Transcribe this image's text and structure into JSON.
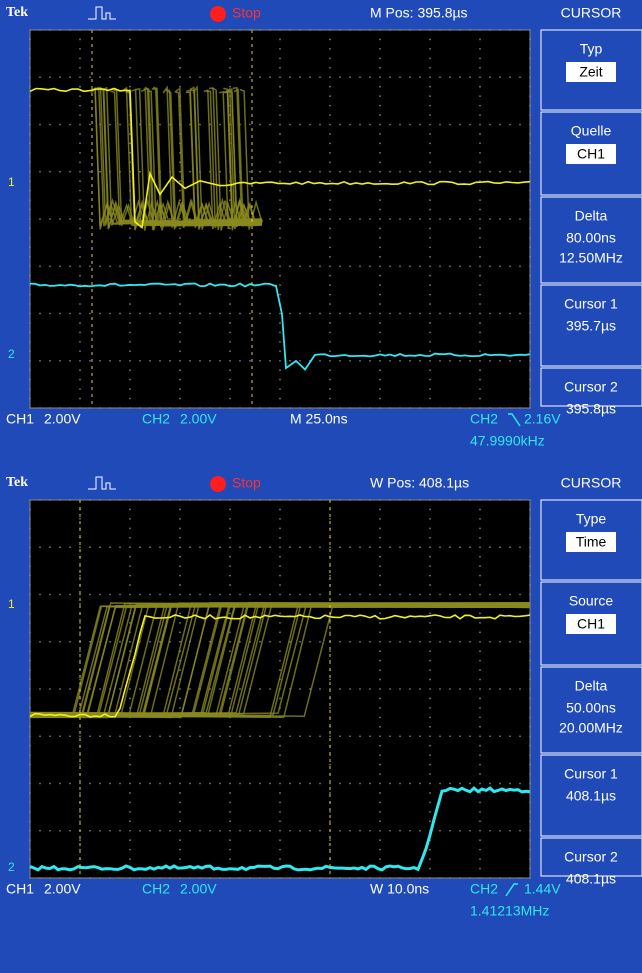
{
  "screens": [
    {
      "header": {
        "brand": "Tek",
        "state": "Stop",
        "position": "M Pos: 395.8µs"
      },
      "menu": {
        "title": "CURSOR",
        "items": [
          {
            "label": "Typ",
            "value": "Zeit"
          },
          {
            "label": "Quelle",
            "value": "CH1"
          },
          {
            "label": "Delta",
            "lines": [
              "80.00ns",
              "12.50MHz"
            ]
          },
          {
            "label": "Cursor 1",
            "lines": [
              "395.7µs"
            ]
          },
          {
            "label": "Cursor 2",
            "lines": [
              "395.8µs"
            ]
          }
        ]
      },
      "markers": [
        "1",
        "2"
      ],
      "footer": {
        "ch1": "CH1",
        "ch1_scale": "2.00V",
        "ch2": "CH2",
        "ch2_scale": "2.00V",
        "timebase": "M 25.0ns",
        "trigger_source": "CH2",
        "trigger_level": "2.16V",
        "frequency": "47.9990kHz"
      }
    },
    {
      "header": {
        "brand": "Tek",
        "state": "Stop",
        "position": "W Pos: 408.1µs"
      },
      "menu": {
        "title": "CURSOR",
        "items": [
          {
            "label": "Type",
            "value": "Time"
          },
          {
            "label": "Source",
            "value": "CH1"
          },
          {
            "label": "Delta",
            "lines": [
              "50.00ns",
              "20.00MHz"
            ]
          },
          {
            "label": "Cursor 1",
            "lines": [
              "408.1µs"
            ]
          },
          {
            "label": "Cursor 2",
            "lines": [
              "408.1µs"
            ]
          }
        ]
      },
      "markers": [
        "1",
        "2"
      ],
      "footer": {
        "ch1": "CH1",
        "ch1_scale": "2.00V",
        "ch2": "CH2",
        "ch2_scale": "2.00V",
        "timebase": "W 10.0ns",
        "trigger_source": "CH2",
        "trigger_level": "1.44V",
        "frequency": "1.41213MHz"
      }
    }
  ]
}
